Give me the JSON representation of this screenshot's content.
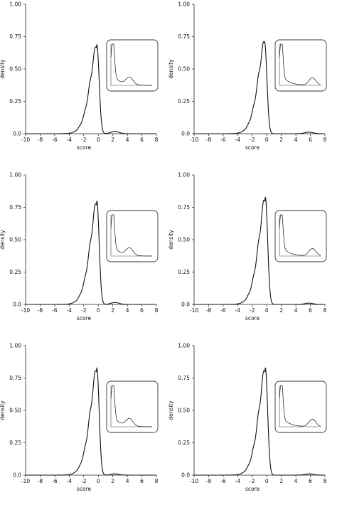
{
  "chart_data": [
    {
      "type": "line",
      "xlabel": "score",
      "ylabel": "density",
      "xlim": [
        -10,
        8
      ],
      "ylim": [
        0,
        1
      ],
      "x_ticks": [
        "-10",
        "-8",
        "-6",
        "-4",
        "-2",
        "0",
        "2",
        "4",
        "6",
        "8"
      ],
      "y_ticks": [
        "0.0",
        "0.25",
        "0.50",
        "0.75",
        "1.00"
      ],
      "peak": {
        "x": -0.2,
        "y": 0.69
      },
      "secondary_bump": {
        "x": 2.3,
        "y": 0.018
      },
      "grid": false,
      "inset": {
        "type": "line",
        "description_visible": false
      }
    },
    {
      "type": "line",
      "xlabel": "score",
      "ylabel": "density",
      "xlim": [
        -10,
        8
      ],
      "ylim": [
        0,
        1
      ],
      "x_ticks": [
        "-10",
        "-8",
        "-6",
        "-4",
        "-2",
        "0",
        "2",
        "4",
        "6",
        "8"
      ],
      "y_ticks": [
        "0.0",
        "0.25",
        "0.50",
        "0.75",
        "1.00"
      ],
      "peak": {
        "x": -0.3,
        "y": 0.71
      },
      "secondary_bump": {
        "x": 5.8,
        "y": 0.012
      },
      "grid": false,
      "inset": {
        "type": "line"
      }
    },
    {
      "type": "line",
      "xlabel": "score",
      "ylabel": "density",
      "xlim": [
        -10,
        8
      ],
      "ylim": [
        0,
        1
      ],
      "x_ticks": [
        "-10",
        "-8",
        "-6",
        "-4",
        "-2",
        "0",
        "2",
        "4",
        "6",
        "8"
      ],
      "y_ticks": [
        "0.0",
        "0.25",
        "0.50",
        "0.75",
        "1.00"
      ],
      "peak": {
        "x": -0.2,
        "y": 0.8
      },
      "secondary_bump": {
        "x": 2.3,
        "y": 0.015
      },
      "grid": false,
      "inset": {
        "type": "line"
      }
    },
    {
      "type": "line",
      "xlabel": "score",
      "ylabel": "density",
      "xlim": [
        -10,
        8
      ],
      "ylim": [
        0,
        1
      ],
      "x_ticks": [
        "-10",
        "-8",
        "-6",
        "-4",
        "-2",
        "0",
        "2",
        "4",
        "6",
        "8"
      ],
      "y_ticks": [
        "0.0",
        "0.25",
        "0.50",
        "0.75",
        "1.00"
      ],
      "peak": {
        "x": -0.2,
        "y": 0.83
      },
      "secondary_bump": {
        "x": 5.8,
        "y": 0.01
      },
      "grid": false,
      "inset": {
        "type": "line"
      }
    },
    {
      "type": "line",
      "xlabel": "score",
      "ylabel": "density",
      "xlim": [
        -10,
        8
      ],
      "ylim": [
        0,
        1
      ],
      "x_ticks": [
        "-10",
        "-8",
        "-6",
        "-4",
        "-2",
        "0",
        "2",
        "4",
        "6",
        "8"
      ],
      "y_ticks": [
        "0.0",
        "0.25",
        "0.50",
        "0.75",
        "1.00"
      ],
      "peak": {
        "x": -0.2,
        "y": 0.83
      },
      "secondary_bump": {
        "x": 2.3,
        "y": 0.01
      },
      "grid": false,
      "inset": {
        "type": "line"
      }
    },
    {
      "type": "line",
      "xlabel": "score",
      "ylabel": "density",
      "xlim": [
        -10,
        8
      ],
      "ylim": [
        0,
        1
      ],
      "x_ticks": [
        "-10",
        "-8",
        "-6",
        "-4",
        "-2",
        "0",
        "2",
        "4",
        "6",
        "8"
      ],
      "y_ticks": [
        "0.0",
        "0.25",
        "0.50",
        "0.75",
        "1.00"
      ],
      "peak": {
        "x": -0.2,
        "y": 0.83
      },
      "secondary_bump": {
        "x": 5.8,
        "y": 0.01
      },
      "grid": false,
      "inset": {
        "type": "line"
      }
    }
  ]
}
